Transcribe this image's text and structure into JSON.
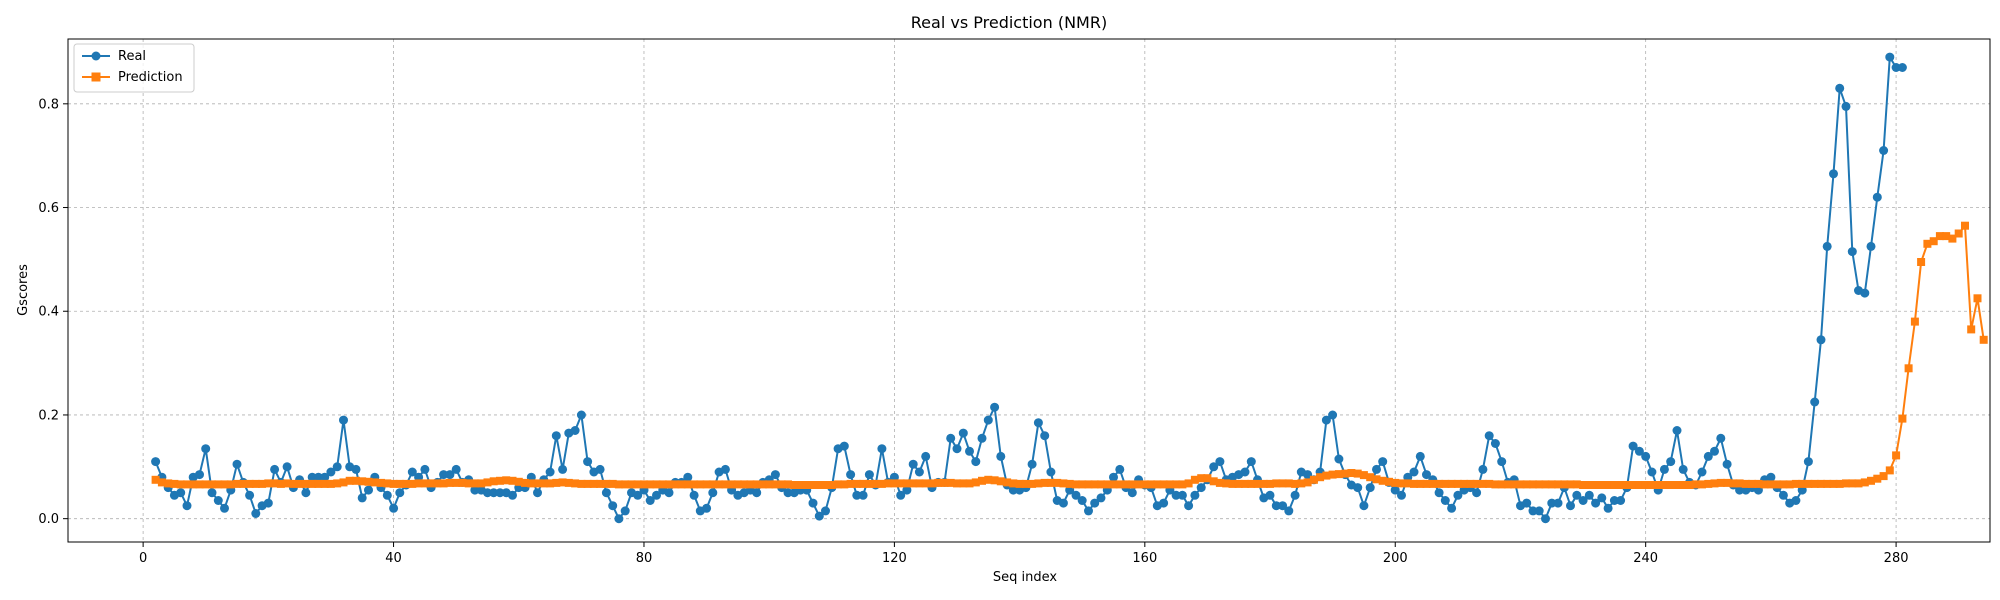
{
  "chart_data": {
    "type": "line",
    "title": "Real vs Prediction (NMR)",
    "xlabel": "Seq index",
    "ylabel": "Gscores",
    "xlim": [
      -12,
      295
    ],
    "ylim": [
      -0.045,
      0.925
    ],
    "xticks": [
      0,
      40,
      80,
      120,
      160,
      200,
      240,
      280
    ],
    "yticks": [
      0.0,
      0.2,
      0.4,
      0.6,
      0.8
    ],
    "grid": true,
    "legend_position": "top-left",
    "x_start": 2,
    "series": [
      {
        "name": "Real",
        "color": "#1f77b4",
        "marker": "circle",
        "values": [
          0.11,
          0.08,
          0.06,
          0.045,
          0.05,
          0.025,
          0.08,
          0.085,
          0.135,
          0.05,
          0.035,
          0.02,
          0.055,
          0.105,
          0.07,
          0.045,
          0.01,
          0.025,
          0.03,
          0.095,
          0.07,
          0.1,
          0.06,
          0.075,
          0.05,
          0.08,
          0.08,
          0.08,
          0.09,
          0.1,
          0.19,
          0.1,
          0.095,
          0.04,
          0.055,
          0.08,
          0.06,
          0.045,
          0.02,
          0.05,
          0.065,
          0.09,
          0.08,
          0.095,
          0.06,
          0.07,
          0.085,
          0.085,
          0.095,
          0.07,
          0.075,
          0.055,
          0.055,
          0.05,
          0.05,
          0.05,
          0.05,
          0.045,
          0.06,
          0.06,
          0.08,
          0.05,
          0.075,
          0.09,
          0.16,
          0.095,
          0.165,
          0.17,
          0.2,
          0.11,
          0.09,
          0.095,
          0.05,
          0.025,
          0.0,
          0.015,
          0.05,
          0.045,
          0.055,
          0.035,
          0.045,
          0.055,
          0.05,
          0.07,
          0.07,
          0.08,
          0.045,
          0.015,
          0.02,
          0.05,
          0.09,
          0.095,
          0.055,
          0.045,
          0.05,
          0.055,
          0.05,
          0.07,
          0.075,
          0.085,
          0.06,
          0.05,
          0.05,
          0.055,
          0.055,
          0.03,
          0.005,
          0.015,
          0.06,
          0.135,
          0.14,
          0.085,
          0.045,
          0.045,
          0.085,
          0.065,
          0.135,
          0.07,
          0.08,
          0.045,
          0.055,
          0.105,
          0.09,
          0.12,
          0.06,
          0.07,
          0.07,
          0.155,
          0.135,
          0.165,
          0.13,
          0.11,
          0.155,
          0.19,
          0.215,
          0.12,
          0.065,
          0.055,
          0.055,
          0.06,
          0.105,
          0.185,
          0.16,
          0.09,
          0.035,
          0.03,
          0.055,
          0.045,
          0.035,
          0.015,
          0.03,
          0.04,
          0.055,
          0.08,
          0.095,
          0.06,
          0.05,
          0.075,
          0.065,
          0.06,
          0.025,
          0.03,
          0.055,
          0.045,
          0.045,
          0.025,
          0.045,
          0.06,
          0.075,
          0.1,
          0.11,
          0.075,
          0.08,
          0.085,
          0.09,
          0.11,
          0.075,
          0.04,
          0.045,
          0.025,
          0.025,
          0.015,
          0.045,
          0.09,
          0.085,
          0.075,
          0.09,
          0.19,
          0.2,
          0.115,
          0.085,
          0.065,
          0.06,
          0.025,
          0.06,
          0.095,
          0.11,
          0.07,
          0.055,
          0.045,
          0.08,
          0.09,
          0.12,
          0.085,
          0.075,
          0.05,
          0.035,
          0.02,
          0.045,
          0.055,
          0.06,
          0.05,
          0.095,
          0.16,
          0.145,
          0.11,
          0.07,
          0.075,
          0.025,
          0.03,
          0.015,
          0.015,
          0.0,
          0.03,
          0.03,
          0.06,
          0.025,
          0.045,
          0.035,
          0.045,
          0.03,
          0.04,
          0.02,
          0.035,
          0.035,
          0.06,
          0.14,
          0.13,
          0.12,
          0.09,
          0.055,
          0.095,
          0.11,
          0.17,
          0.095,
          0.07,
          0.065,
          0.09,
          0.12,
          0.13,
          0.155,
          0.105,
          0.065,
          0.055,
          0.055,
          0.06,
          0.055,
          0.075,
          0.08,
          0.06,
          0.045,
          0.03,
          0.035,
          0.055,
          0.11,
          0.225,
          0.345,
          0.525,
          0.665,
          0.83,
          0.795,
          0.515,
          0.44,
          0.435,
          0.525,
          0.62,
          0.71,
          0.89,
          0.87,
          0.87
        ]
      },
      {
        "name": "Prediction",
        "color": "#ff7f0e",
        "marker": "square",
        "values": [
          0.075,
          0.07,
          0.068,
          0.067,
          0.066,
          0.066,
          0.066,
          0.066,
          0.066,
          0.066,
          0.066,
          0.066,
          0.066,
          0.067,
          0.067,
          0.067,
          0.067,
          0.067,
          0.068,
          0.068,
          0.067,
          0.068,
          0.067,
          0.067,
          0.067,
          0.067,
          0.067,
          0.067,
          0.067,
          0.068,
          0.07,
          0.073,
          0.073,
          0.072,
          0.071,
          0.07,
          0.069,
          0.068,
          0.067,
          0.067,
          0.067,
          0.067,
          0.068,
          0.068,
          0.068,
          0.068,
          0.068,
          0.069,
          0.069,
          0.069,
          0.068,
          0.068,
          0.068,
          0.07,
          0.072,
          0.073,
          0.074,
          0.073,
          0.071,
          0.069,
          0.068,
          0.068,
          0.068,
          0.068,
          0.069,
          0.07,
          0.069,
          0.068,
          0.067,
          0.067,
          0.067,
          0.067,
          0.067,
          0.067,
          0.066,
          0.066,
          0.066,
          0.066,
          0.066,
          0.066,
          0.066,
          0.066,
          0.066,
          0.066,
          0.066,
          0.066,
          0.066,
          0.066,
          0.066,
          0.066,
          0.066,
          0.066,
          0.066,
          0.066,
          0.066,
          0.066,
          0.066,
          0.066,
          0.066,
          0.066,
          0.066,
          0.066,
          0.065,
          0.065,
          0.065,
          0.065,
          0.065,
          0.065,
          0.065,
          0.066,
          0.066,
          0.067,
          0.067,
          0.067,
          0.067,
          0.067,
          0.067,
          0.068,
          0.068,
          0.068,
          0.068,
          0.068,
          0.068,
          0.068,
          0.068,
          0.069,
          0.069,
          0.069,
          0.068,
          0.068,
          0.068,
          0.07,
          0.073,
          0.075,
          0.074,
          0.072,
          0.07,
          0.068,
          0.067,
          0.067,
          0.067,
          0.068,
          0.069,
          0.069,
          0.069,
          0.068,
          0.067,
          0.066,
          0.066,
          0.066,
          0.066,
          0.066,
          0.066,
          0.066,
          0.066,
          0.066,
          0.066,
          0.066,
          0.066,
          0.066,
          0.066,
          0.066,
          0.066,
          0.066,
          0.066,
          0.068,
          0.075,
          0.078,
          0.078,
          0.072,
          0.069,
          0.068,
          0.067,
          0.067,
          0.067,
          0.067,
          0.067,
          0.067,
          0.067,
          0.068,
          0.068,
          0.068,
          0.067,
          0.068,
          0.07,
          0.075,
          0.08,
          0.083,
          0.085,
          0.086,
          0.087,
          0.088,
          0.087,
          0.084,
          0.08,
          0.076,
          0.073,
          0.071,
          0.069,
          0.068,
          0.068,
          0.067,
          0.067,
          0.067,
          0.067,
          0.067,
          0.067,
          0.067,
          0.067,
          0.067,
          0.067,
          0.067,
          0.067,
          0.067,
          0.066,
          0.066,
          0.066,
          0.066,
          0.066,
          0.066,
          0.066,
          0.066,
          0.066,
          0.066,
          0.066,
          0.066,
          0.066,
          0.066,
          0.065,
          0.065,
          0.065,
          0.065,
          0.065,
          0.065,
          0.065,
          0.065,
          0.065,
          0.065,
          0.065,
          0.065,
          0.065,
          0.065,
          0.065,
          0.065,
          0.065,
          0.065,
          0.066,
          0.066,
          0.067,
          0.068,
          0.069,
          0.069,
          0.068,
          0.068,
          0.067,
          0.067,
          0.067,
          0.066,
          0.066,
          0.066,
          0.066,
          0.066,
          0.067,
          0.067,
          0.067,
          0.067,
          0.067,
          0.067,
          0.067,
          0.067,
          0.068,
          0.068,
          0.068,
          0.07,
          0.073,
          0.077,
          0.082,
          0.093,
          0.122,
          0.193,
          0.29,
          0.38,
          0.495,
          0.53,
          0.535,
          0.545,
          0.545,
          0.54,
          0.55,
          0.565,
          0.365,
          0.425,
          0.345
        ]
      }
    ]
  }
}
